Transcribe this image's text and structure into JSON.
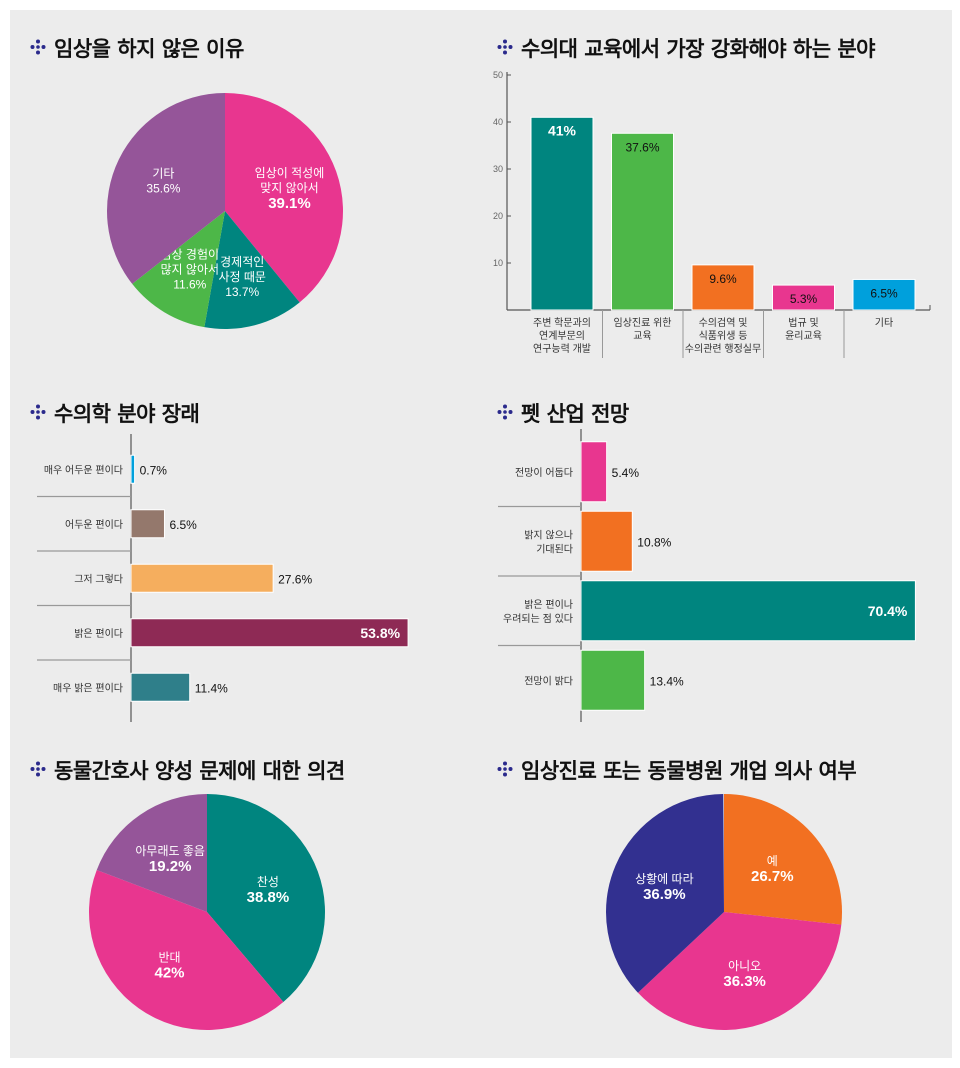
{
  "colors": {
    "bg": "#ececec",
    "pink": "#e8368f",
    "teal": "#00857f",
    "green": "#4db748",
    "purple": "#955599",
    "orange": "#f27021",
    "cyan": "#00a0dc",
    "navy": "#323090",
    "brown": "#94786c",
    "sand": "#f5ae5e",
    "wine": "#8e2a55",
    "steel": "#2f7f8a"
  },
  "chart_data": [
    {
      "type": "pie",
      "title": "임상을 하지 않은 이유",
      "slices": [
        {
          "lines": [
            "임상이 적성에",
            "맞지 않아서"
          ],
          "value": 39.1,
          "label": "39.1%",
          "color": "#e8368f",
          "bold": true
        },
        {
          "lines": [
            "경제적인",
            "사정 때문"
          ],
          "value": 13.7,
          "label": "13.7%",
          "color": "#00857f"
        },
        {
          "lines": [
            "임상 경험이",
            "많지 않아서"
          ],
          "value": 11.6,
          "label": "11.6%",
          "color": "#4db748"
        },
        {
          "lines": [
            "기타"
          ],
          "value": 35.6,
          "label": "35.6%",
          "color": "#955599"
        }
      ]
    },
    {
      "type": "bar",
      "title": "수의대 교육에서 가장 강화해야 하는 분야",
      "ylim": [
        0,
        50
      ],
      "yticks": [
        "10",
        "20",
        "30",
        "40",
        "50"
      ],
      "categories": [
        [
          "주변 학문과의",
          "연계부문의",
          "연구능력 개발"
        ],
        [
          "임상진료 위한",
          "교육"
        ],
        [
          "수의검역 및",
          "식품위생 등",
          "수의관련 행정실무"
        ],
        [
          "법규 및",
          "윤리교육"
        ],
        [
          "기타"
        ]
      ],
      "values": [
        41,
        37.6,
        9.6,
        5.3,
        6.5
      ],
      "labels": [
        "41%",
        "37.6%",
        "9.6%",
        "5.3%",
        "6.5%"
      ],
      "colors": [
        "#00857f",
        "#4db748",
        "#f27021",
        "#e8368f",
        "#00a0dc"
      ]
    },
    {
      "type": "bar",
      "orientation": "horizontal",
      "title": "수의학 분야 장래",
      "categories": [
        [
          "매우 어두운 편이다"
        ],
        [
          "어두운 편이다"
        ],
        [
          "그저 그렇다"
        ],
        [
          "밝은 편이다"
        ],
        [
          "매우 밝은 편이다"
        ]
      ],
      "values": [
        0.7,
        6.5,
        27.6,
        53.8,
        11.4
      ],
      "labels": [
        "0.7%",
        "6.5%",
        "27.6%",
        "53.8%",
        "11.4%"
      ],
      "colors": [
        "#00a0dc",
        "#94786c",
        "#f5ae5e",
        "#8e2a55",
        "#2f7f8a"
      ]
    },
    {
      "type": "bar",
      "orientation": "horizontal",
      "title": "펫 산업 전망",
      "categories": [
        [
          "전망이 어둡다"
        ],
        [
          "밝지 않으나",
          "기대된다"
        ],
        [
          "밝은 편이나",
          "우려되는 점 있다"
        ],
        [
          "전망이 밝다"
        ]
      ],
      "values": [
        5.4,
        10.8,
        70.4,
        13.4
      ],
      "labels": [
        "5.4%",
        "10.8%",
        "70.4%",
        "13.4%"
      ],
      "colors": [
        "#e8368f",
        "#f27021",
        "#00857f",
        "#4db748"
      ]
    },
    {
      "type": "pie",
      "title": "동물간호사 양성 문제에 대한 의견",
      "slices": [
        {
          "lines": [
            "찬성"
          ],
          "value": 38.8,
          "label": "38.8%",
          "color": "#00857f",
          "bold": true
        },
        {
          "lines": [
            "반대"
          ],
          "value": 42,
          "label": "42%",
          "color": "#e8368f",
          "bold": true
        },
        {
          "lines": [
            "아무래도 좋음"
          ],
          "value": 19.2,
          "label": "19.2%",
          "color": "#955599",
          "bold": true
        }
      ]
    },
    {
      "type": "pie",
      "title": "임상진료 또는 동물병원 개업 의사 여부",
      "slices": [
        {
          "lines": [
            "예"
          ],
          "value": 26.7,
          "label": "26.7%",
          "color": "#f27021",
          "bold": true
        },
        {
          "lines": [
            "아니오"
          ],
          "value": 36.3,
          "label": "36.3%",
          "color": "#e8368f",
          "bold": true
        },
        {
          "lines": [
            "상황에 따라"
          ],
          "value": 36.9,
          "label": "36.9%",
          "color": "#323090",
          "bold": true
        }
      ]
    }
  ]
}
